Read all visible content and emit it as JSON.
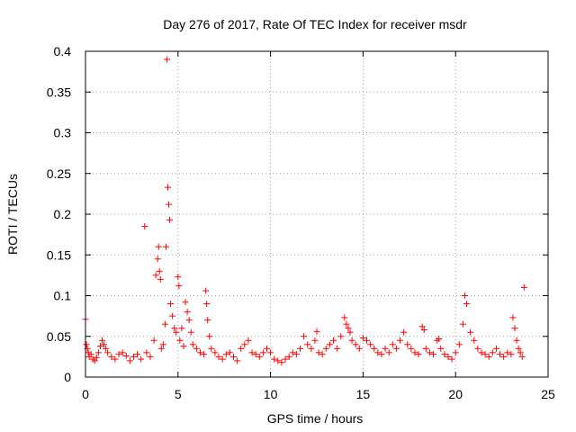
{
  "chart_data": {
    "type": "scatter",
    "title": "Day 276 of 2017, Rate Of TEC Index for receiver msdr",
    "xlabel": "GPS time / hours",
    "ylabel": "ROTI / TECUs",
    "xlim": [
      0,
      25
    ],
    "ylim": [
      0,
      0.4
    ],
    "x_ticks": [
      0,
      5,
      10,
      15,
      20,
      25
    ],
    "x_tick_labels": [
      "0",
      "5",
      "10",
      "15",
      "20",
      "25"
    ],
    "y_ticks": [
      0,
      0.05,
      0.1,
      0.15,
      0.2,
      0.25,
      0.3,
      0.35,
      0.4
    ],
    "y_tick_labels": [
      "0",
      "0.05",
      "0.1",
      "0.15",
      "0.2",
      "0.25",
      "0.3",
      "0.35",
      "0.4"
    ],
    "grid": true,
    "marker": "+",
    "marker_color": "#ff0000",
    "series": [
      {
        "name": "ROTI",
        "x": [
          0.0,
          0.05,
          0.1,
          0.15,
          0.2,
          0.3,
          0.4,
          0.5,
          0.6,
          0.7,
          0.8,
          0.9,
          1.0,
          1.1,
          1.2,
          1.4,
          1.6,
          1.8,
          2.0,
          2.2,
          2.4,
          2.6,
          2.8,
          3.0,
          3.2,
          3.3,
          3.5,
          3.7,
          3.8,
          3.9,
          3.95,
          4.0,
          4.05,
          4.1,
          4.2,
          4.3,
          4.35,
          4.4,
          4.45,
          4.5,
          4.55,
          4.6,
          4.7,
          4.8,
          4.9,
          5.0,
          5.05,
          5.1,
          5.2,
          5.3,
          5.4,
          5.5,
          5.6,
          5.7,
          5.8,
          6.0,
          6.2,
          6.4,
          6.5,
          6.55,
          6.6,
          6.7,
          6.8,
          7.0,
          7.2,
          7.4,
          7.6,
          7.8,
          8.0,
          8.2,
          8.4,
          8.6,
          8.8,
          9.0,
          9.2,
          9.4,
          9.6,
          9.8,
          10.0,
          10.2,
          10.4,
          10.6,
          10.8,
          11.0,
          11.2,
          11.4,
          11.6,
          11.8,
          12.0,
          12.2,
          12.4,
          12.5,
          12.6,
          12.8,
          13.0,
          13.2,
          13.4,
          13.6,
          13.8,
          14.0,
          14.1,
          14.2,
          14.3,
          14.4,
          14.6,
          14.8,
          15.0,
          15.2,
          15.4,
          15.6,
          15.8,
          16.0,
          16.2,
          16.4,
          16.6,
          16.8,
          17.0,
          17.2,
          17.4,
          17.6,
          17.8,
          18.0,
          18.2,
          18.3,
          18.4,
          18.6,
          18.8,
          19.0,
          19.1,
          19.2,
          19.4,
          19.6,
          19.8,
          20.0,
          20.2,
          20.4,
          20.5,
          20.6,
          20.8,
          21.0,
          21.2,
          21.4,
          21.6,
          21.8,
          22.0,
          22.2,
          22.4,
          22.6,
          22.8,
          23.0,
          23.1,
          23.2,
          23.3,
          23.4,
          23.5,
          23.6,
          23.7
        ],
        "y": [
          0.071,
          0.04,
          0.035,
          0.03,
          0.025,
          0.028,
          0.022,
          0.02,
          0.024,
          0.03,
          0.038,
          0.045,
          0.04,
          0.035,
          0.03,
          0.025,
          0.022,
          0.028,
          0.03,
          0.026,
          0.02,
          0.025,
          0.028,
          0.022,
          0.185,
          0.03,
          0.025,
          0.045,
          0.125,
          0.145,
          0.16,
          0.13,
          0.12,
          0.035,
          0.04,
          0.065,
          0.16,
          0.39,
          0.233,
          0.212,
          0.193,
          0.09,
          0.075,
          0.06,
          0.055,
          0.123,
          0.112,
          0.045,
          0.06,
          0.038,
          0.092,
          0.08,
          0.07,
          0.055,
          0.04,
          0.035,
          0.03,
          0.028,
          0.106,
          0.09,
          0.07,
          0.05,
          0.035,
          0.03,
          0.025,
          0.022,
          0.028,
          0.03,
          0.025,
          0.02,
          0.035,
          0.04,
          0.045,
          0.03,
          0.028,
          0.025,
          0.03,
          0.035,
          0.03,
          0.022,
          0.02,
          0.018,
          0.022,
          0.025,
          0.03,
          0.028,
          0.035,
          0.05,
          0.04,
          0.035,
          0.045,
          0.056,
          0.03,
          0.028,
          0.035,
          0.04,
          0.045,
          0.035,
          0.05,
          0.073,
          0.065,
          0.06,
          0.055,
          0.045,
          0.04,
          0.035,
          0.048,
          0.045,
          0.04,
          0.035,
          0.03,
          0.028,
          0.035,
          0.03,
          0.04,
          0.035,
          0.045,
          0.055,
          0.04,
          0.035,
          0.03,
          0.028,
          0.062,
          0.058,
          0.035,
          0.03,
          0.028,
          0.045,
          0.047,
          0.035,
          0.028,
          0.025,
          0.022,
          0.03,
          0.04,
          0.065,
          0.1,
          0.09,
          0.055,
          0.045,
          0.035,
          0.03,
          0.028,
          0.025,
          0.03,
          0.035,
          0.028,
          0.025,
          0.03,
          0.028,
          0.073,
          0.06,
          0.045,
          0.035,
          0.03,
          0.025,
          0.11
        ]
      }
    ]
  }
}
